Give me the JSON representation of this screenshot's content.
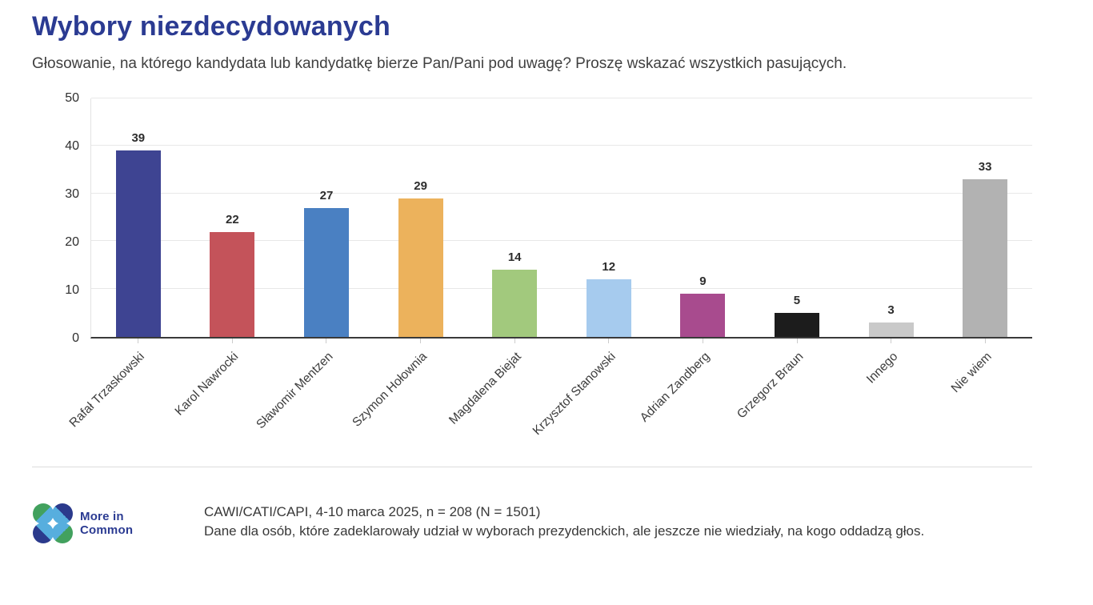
{
  "page": {
    "title": "Wybory niezdecydowanych",
    "subtitle": "Głosowanie, na którego kandydata lub kandydatkę bierze Pan/Pani pod uwagę? Proszę wskazać wszystkich pasujących."
  },
  "chart_data": {
    "type": "bar",
    "title": "Wybory niezdecydowanych",
    "categories": [
      "Rafał Trzaskowski",
      "Karol Nawrocki",
      "Sławomir Mentzen",
      "Szymon Hołownia",
      "Magdalena Biejat",
      "Krzysztof Stanowski",
      "Adrian Zandberg",
      "Grzegorz Braun",
      "Innego",
      "Nie wiem"
    ],
    "values": [
      39,
      22,
      27,
      29,
      14,
      12,
      9,
      5,
      3,
      33
    ],
    "bar_colors": [
      "#3e4492",
      "#c4535a",
      "#4a80c2",
      "#ecb25c",
      "#a2c97d",
      "#a6cbee",
      "#a84b8e",
      "#1c1c1c",
      "#c9c9c9",
      "#b2b2b2"
    ],
    "xlabel": "",
    "ylabel": "",
    "ylim": [
      0,
      50
    ],
    "yticks": [
      0,
      10,
      20,
      30,
      40,
      50
    ],
    "grid": true,
    "value_labels": true,
    "legend": false,
    "x_tick_rotation_deg": -45
  },
  "footer": {
    "logo": {
      "line1": "More in",
      "line2": "Common"
    },
    "source_line1": "CAWI/CATI/CAPI, 4-10 marca 2025, n = 208 (N = 1501)",
    "source_line2": "Dane dla osób, które zadeklarowały udział w wyborach prezydenckich, ale jeszcze nie wiedziały, na kogo oddadzą głos."
  },
  "colors": {
    "title_navy": "#2b3b92",
    "axis_line": "#3a3a3a",
    "gridline": "#e8e8e8",
    "logo_navy": "#2b3a8c",
    "logo_green": "#42a15e",
    "logo_light_blue": "#57aede"
  }
}
